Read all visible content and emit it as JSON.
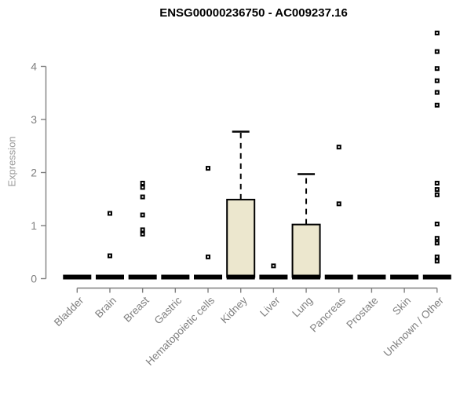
{
  "chart_data": {
    "type": "boxplot",
    "title": "ENSG00000236750 - AC009237.16",
    "ylabel": "Expression",
    "xlabel": "",
    "yticks": [
      0,
      1,
      2,
      3,
      4
    ],
    "ylim": [
      0,
      4.75
    ],
    "grid": false,
    "legend": "none",
    "categories": [
      "Bladder",
      "Brain",
      "Breast",
      "Gastric",
      "Hematopoietic cells",
      "Kidney",
      "Liver",
      "Lung",
      "Pancreas",
      "Prostate",
      "Skin",
      "Unknown / Other"
    ],
    "boxes": [
      {
        "category": "Bladder",
        "median": 0,
        "q1": 0,
        "q3": 0,
        "whisker_low": 0,
        "whisker_high": 0,
        "outliers": []
      },
      {
        "category": "Brain",
        "median": 0,
        "q1": 0,
        "q3": 0,
        "whisker_low": 0,
        "whisker_high": 0,
        "outliers": [
          1.23,
          0.43
        ]
      },
      {
        "category": "Breast",
        "median": 0,
        "q1": 0,
        "q3": 0,
        "whisker_low": 0,
        "whisker_high": 0,
        "outliers": [
          1.8,
          1.72,
          1.54,
          1.2,
          0.92,
          0.84
        ]
      },
      {
        "category": "Gastric",
        "median": 0,
        "q1": 0,
        "q3": 0,
        "whisker_low": 0,
        "whisker_high": 0,
        "outliers": []
      },
      {
        "category": "Hematopoietic cells",
        "median": 0,
        "q1": 0,
        "q3": 0,
        "whisker_low": 0,
        "whisker_high": 0,
        "outliers": [
          2.08,
          0.41
        ]
      },
      {
        "category": "Kidney",
        "median": 0,
        "q1": 0,
        "q3": 1.49,
        "whisker_low": 0,
        "whisker_high": 2.77,
        "outliers": []
      },
      {
        "category": "Liver",
        "median": 0,
        "q1": 0,
        "q3": 0,
        "whisker_low": 0,
        "whisker_high": 0,
        "outliers": [
          0.24
        ]
      },
      {
        "category": "Lung",
        "median": 0,
        "q1": 0,
        "q3": 1.02,
        "whisker_low": 0,
        "whisker_high": 1.97,
        "outliers": []
      },
      {
        "category": "Pancreas",
        "median": 0,
        "q1": 0,
        "q3": 0,
        "whisker_low": 0,
        "whisker_high": 0,
        "outliers": [
          2.48,
          1.41
        ]
      },
      {
        "category": "Prostate",
        "median": 0,
        "q1": 0,
        "q3": 0,
        "whisker_low": 0,
        "whisker_high": 0,
        "outliers": []
      },
      {
        "category": "Skin",
        "median": 0,
        "q1": 0,
        "q3": 0,
        "whisker_low": 0,
        "whisker_high": 0,
        "outliers": []
      },
      {
        "category": "Unknown / Other",
        "median": 0,
        "q1": 0,
        "q3": 0,
        "whisker_low": 0,
        "whisker_high": 0,
        "outliers": [
          4.63,
          4.28,
          3.96,
          3.73,
          3.51,
          3.27,
          1.8,
          1.68,
          1.58,
          1.03,
          0.76,
          0.67,
          0.41,
          0.33
        ]
      }
    ],
    "colors": {
      "box_fill": "#ECE7CE",
      "box_border": "#000000",
      "median": "#000000",
      "whisker": "#000000",
      "outlier": "#000000",
      "axis": "#7f7f7f",
      "tick_label": "#7f7f7f",
      "axis_label": "#9a9a9a",
      "title": "#000000",
      "background": "#ffffff"
    }
  }
}
